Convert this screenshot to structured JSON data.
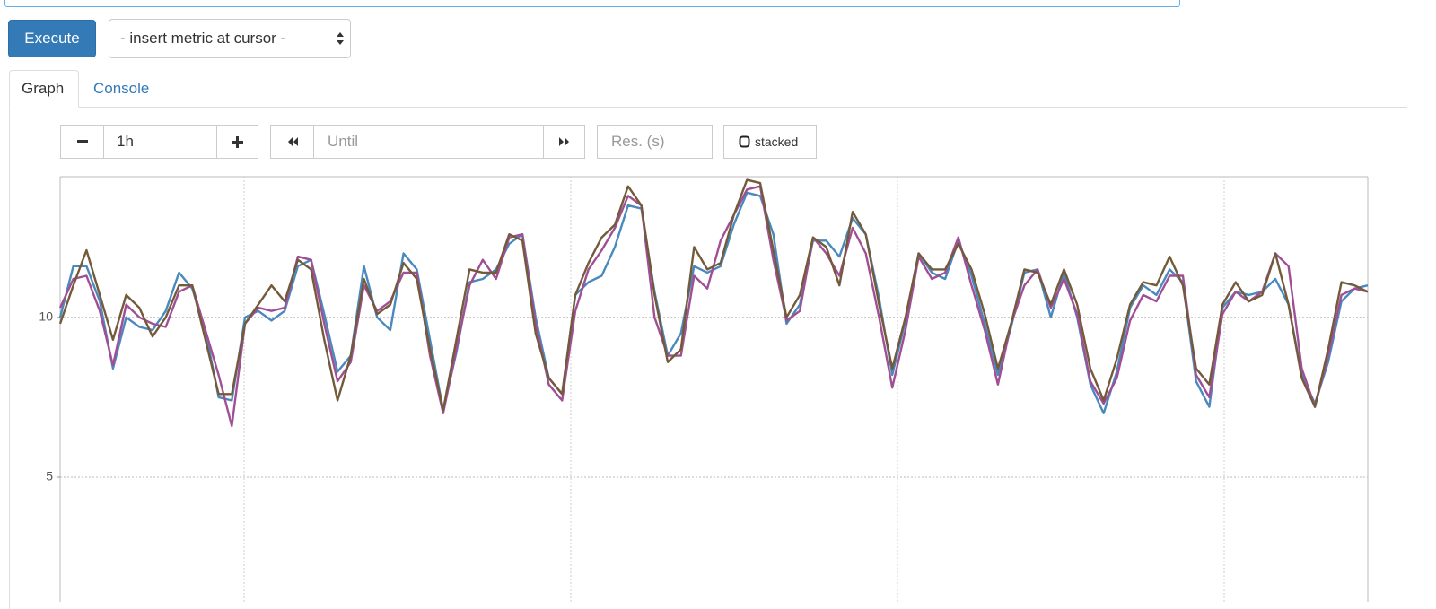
{
  "ui": {
    "execute": "Execute",
    "metric_select": "- insert metric at cursor -",
    "tabs": [
      "Graph",
      "Console"
    ],
    "range": "1h",
    "until": "Until",
    "resolution": "Res. (s)",
    "stacked": "stacked"
  },
  "chart_data": {
    "type": "line",
    "ylim": [
      1.1,
      14.4
    ],
    "yticks": [
      5,
      10
    ],
    "grid": true,
    "series": [
      {
        "color": "#4a89bd",
        "values": [
          10.0,
          11.6,
          11.6,
          10.5,
          8.4,
          10.0,
          9.7,
          9.6,
          10.2,
          11.4,
          10.9,
          9.6,
          7.5,
          7.4,
          10.0,
          10.2,
          9.9,
          10.2,
          11.6,
          11.8,
          10.1,
          8.3,
          8.8,
          11.6,
          10.0,
          9.6,
          12.0,
          11.5,
          9.3,
          7.1,
          8.9,
          11.1,
          11.2,
          11.5,
          12.3,
          12.6,
          10.0,
          8.1,
          7.6,
          10.7,
          11.1,
          11.3,
          12.2,
          13.5,
          13.4,
          10.8,
          8.8,
          9.5,
          11.6,
          11.4,
          11.6,
          12.9,
          13.9,
          13.8,
          12.6,
          9.8,
          10.4,
          12.4,
          12.4,
          11.9,
          13.1,
          12.6,
          10.6,
          8.2,
          9.9,
          12.0,
          11.4,
          11.2,
          12.4,
          11.3,
          9.8,
          8.2,
          9.7,
          11.4,
          11.5,
          10.0,
          11.4,
          10.0,
          7.9,
          7.0,
          8.3,
          10.3,
          11.0,
          10.7,
          11.5,
          11.1,
          8.0,
          7.2,
          10.3,
          10.8,
          10.7,
          10.8,
          11.2,
          10.4,
          8.2,
          7.3,
          8.6,
          10.5,
          10.9,
          11.0
        ]
      },
      {
        "color": "#a04f95",
        "values": [
          10.3,
          11.2,
          11.3,
          10.2,
          8.5,
          10.4,
          10.0,
          9.8,
          9.7,
          10.8,
          11.0,
          9.6,
          8.2,
          6.6,
          9.8,
          10.3,
          10.2,
          10.3,
          11.9,
          11.8,
          9.8,
          8.0,
          8.6,
          11.0,
          10.2,
          10.5,
          11.4,
          11.4,
          8.8,
          7.0,
          9.0,
          11.0,
          11.8,
          11.2,
          12.5,
          12.6,
          9.8,
          7.9,
          7.4,
          10.2,
          11.5,
          12.1,
          12.8,
          13.8,
          13.5,
          10.0,
          8.8,
          8.8,
          11.3,
          10.9,
          12.4,
          13.2,
          14.0,
          14.1,
          11.8,
          9.9,
          10.2,
          12.5,
          12.0,
          11.3,
          12.8,
          12.0,
          10.0,
          7.8,
          9.6,
          11.9,
          11.2,
          11.4,
          12.5,
          11.0,
          9.6,
          7.9,
          9.8,
          11.0,
          11.5,
          10.3,
          11.2,
          10.1,
          8.0,
          7.3,
          8.1,
          9.9,
          10.7,
          10.5,
          11.3,
          11.3,
          8.2,
          7.5,
          10.1,
          10.8,
          10.5,
          10.8,
          12.0,
          11.6,
          8.4,
          7.2,
          8.8,
          10.7,
          10.9,
          10.8
        ]
      },
      {
        "color": "#735a3a",
        "values": [
          9.8,
          11.0,
          12.1,
          10.7,
          9.3,
          10.7,
          10.3,
          9.4,
          10.0,
          11.0,
          11.0,
          9.3,
          7.6,
          7.6,
          9.8,
          10.4,
          11.0,
          10.5,
          11.8,
          11.5,
          9.3,
          7.4,
          8.8,
          11.2,
          10.1,
          10.4,
          11.7,
          11.2,
          9.0,
          7.1,
          9.3,
          11.5,
          11.4,
          11.4,
          12.6,
          12.4,
          9.5,
          8.1,
          7.6,
          10.7,
          11.7,
          12.5,
          12.9,
          14.1,
          13.5,
          10.7,
          8.6,
          9.0,
          12.2,
          11.5,
          11.7,
          13.2,
          14.3,
          14.2,
          12.1,
          10.0,
          10.7,
          12.5,
          12.2,
          11.0,
          13.3,
          12.6,
          10.4,
          8.4,
          10.0,
          12.0,
          11.5,
          11.5,
          12.3,
          11.5,
          10.1,
          8.4,
          9.8,
          11.5,
          11.4,
          10.4,
          11.5,
          10.4,
          8.4,
          7.4,
          8.7,
          10.4,
          11.1,
          11.0,
          11.9,
          11.0,
          8.4,
          7.9,
          10.4,
          11.1,
          10.5,
          10.7,
          12.0,
          10.4,
          8.1,
          7.2,
          9.0,
          11.1,
          11.0,
          10.8
        ]
      }
    ]
  }
}
